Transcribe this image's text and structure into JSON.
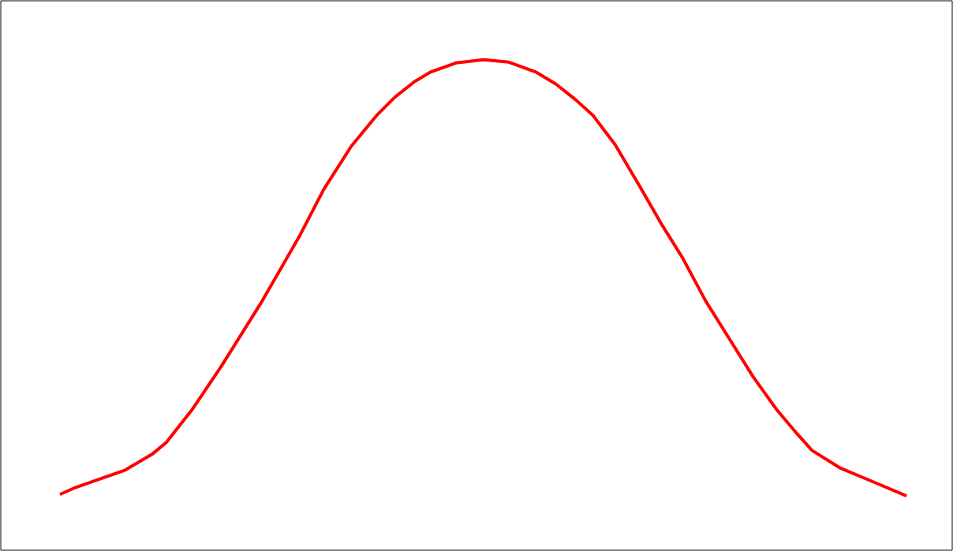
{
  "chart_data": {
    "type": "line",
    "x": [
      75,
      93,
      158,
      192,
      210,
      243,
      280,
      330,
      380,
      410,
      445,
      478,
      500,
      525,
      545,
      578,
      613,
      645,
      680,
      705,
      730,
      752,
      780,
      810,
      840,
      865,
      895,
      925,
      955,
      985,
      1012,
      1030,
      1065,
      1110,
      1150
    ],
    "values": [
      71,
      79,
      102,
      122,
      137,
      179,
      234,
      314,
      401,
      459,
      514,
      554,
      576,
      596,
      608,
      620,
      624,
      621,
      608,
      593,
      573,
      553,
      516,
      465,
      413,
      373,
      317,
      269,
      221,
      179,
      147,
      127,
      105,
      86,
      69
    ],
    "color": "#ff0000",
    "line_style": "solid",
    "xlim": [
      0,
      1208
    ],
    "ylim": [
      0,
      699
    ],
    "grid": false,
    "tick_labels": false
  }
}
